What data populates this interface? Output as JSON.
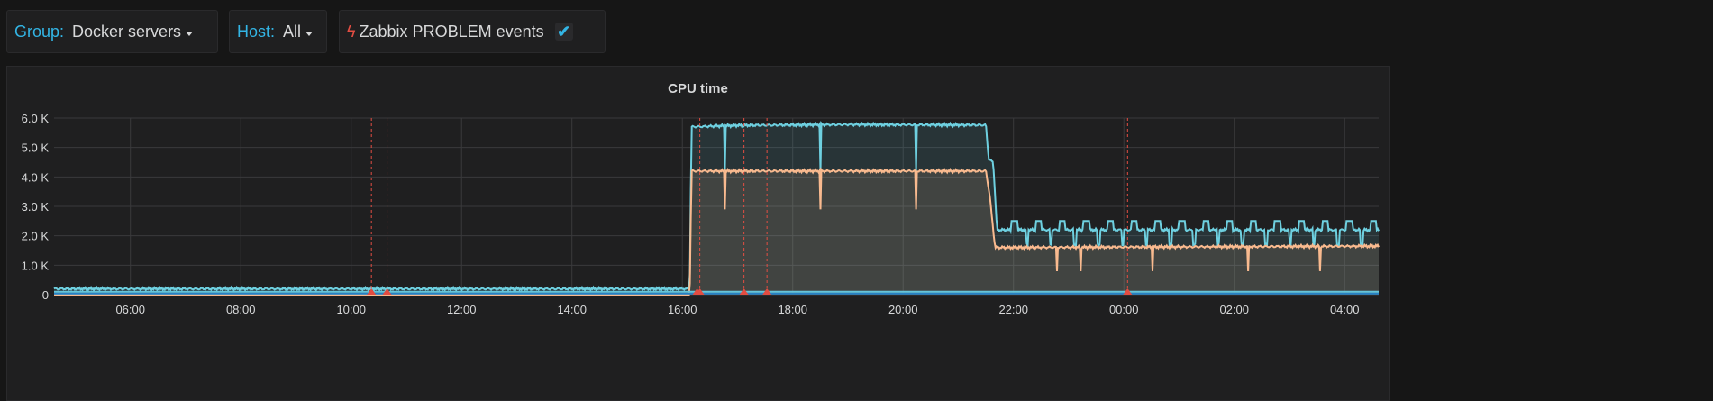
{
  "variables": {
    "group": {
      "label": "Group:",
      "value": "Docker servers"
    },
    "host": {
      "label": "Host:",
      "value": "All"
    },
    "annotations": {
      "label": "Zabbix PROBLEM events",
      "checked": true,
      "icon": "bolt-icon"
    }
  },
  "panel": {
    "title": "CPU time"
  },
  "chart_data": {
    "type": "area",
    "title": "CPU time",
    "ylim": [
      0,
      6000
    ],
    "yticks": [
      "0",
      "1.0 K",
      "2.0 K",
      "3.0 K",
      "4.0 K",
      "5.0 K",
      "6.0 K"
    ],
    "xticks": [
      "06:00",
      "08:00",
      "10:00",
      "12:00",
      "14:00",
      "16:00",
      "18:00",
      "20:00",
      "22:00",
      "00:00",
      "02:00",
      "04:00"
    ],
    "xrange": [
      "04:37",
      "04:37"
    ],
    "grid": true,
    "series": [
      {
        "color": "#6ed0e0",
        "points": [
          [
            "04:37",
            200
          ],
          [
            "16:08",
            200
          ],
          [
            "16:10",
            5700
          ],
          [
            "17:00",
            5750
          ],
          [
            "19:00",
            5780
          ],
          [
            "21:30",
            5760
          ],
          [
            "21:33",
            4600
          ],
          [
            "21:38",
            4500
          ],
          [
            "21:42",
            2200
          ],
          [
            "04:37",
            2200
          ]
        ],
        "dips": {
          "from": "16:20",
          "to": "21:30",
          "every_min": 26,
          "value": 4200
        },
        "bumps": {
          "from": "21:50",
          "to": "04:37",
          "every_min": 26,
          "value": 2500
        }
      },
      {
        "color": "#f9ba8f",
        "points": [
          [
            "04:37",
            0
          ],
          [
            "16:08",
            0
          ],
          [
            "16:10",
            4200
          ],
          [
            "21:30",
            4200
          ],
          [
            "21:34",
            3400
          ],
          [
            "21:40",
            1600
          ],
          [
            "04:37",
            1650
          ]
        ],
        "dips": {
          "from": "16:20",
          "to": "21:30",
          "every_min": 26,
          "value": 2900
        },
        "dips2": {
          "from": "21:55",
          "to": "04:37",
          "every_min": 26,
          "value": 800
        }
      },
      {
        "color": "#1f78c1",
        "points": [
          [
            "04:37",
            40
          ],
          [
            "04:37",
            40
          ]
        ]
      },
      {
        "color": "#65c5db",
        "points": [
          [
            "04:37",
            100
          ],
          [
            "04:37",
            100
          ]
        ]
      }
    ],
    "annotations": [
      "10:22",
      "10:39",
      "16:16",
      "16:19",
      "17:07",
      "17:32",
      "00:04"
    ]
  }
}
